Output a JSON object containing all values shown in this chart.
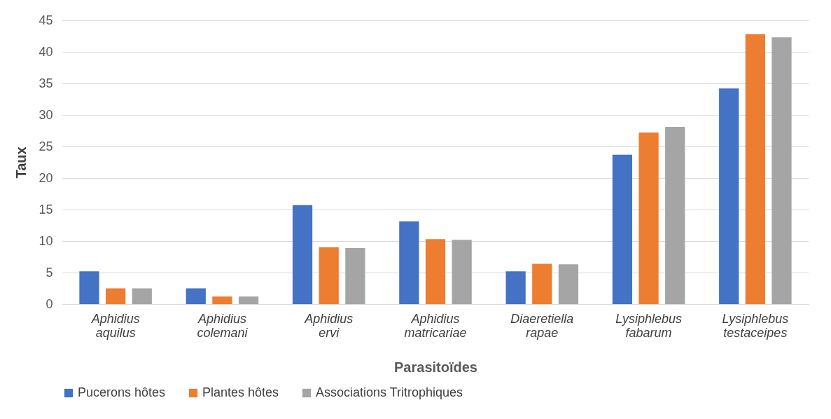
{
  "chart_data": {
    "type": "bar",
    "xlabel": "Parasitoïdes",
    "ylabel": "Taux",
    "categories": [
      "Aphidius aquilus",
      "Aphidius colemani",
      "Aphidius ervi",
      "Aphidius matricariae",
      "Diaeretiella rapae",
      "Lysiphlebus fabarum",
      "Lysiphlebus testaceipes"
    ],
    "series": [
      {
        "name": "Pucerons hôtes",
        "color": "#4472c4",
        "values": [
          5.2,
          2.5,
          15.7,
          13.1,
          5.2,
          23.7,
          34.2
        ]
      },
      {
        "name": "Plantes hôtes",
        "color": "#ed7d31",
        "values": [
          2.5,
          1.2,
          9.0,
          10.3,
          6.4,
          27.2,
          42.8
        ]
      },
      {
        "name": "Associations Tritrophiques",
        "color": "#a5a5a5",
        "values": [
          2.5,
          1.2,
          8.9,
          10.2,
          6.3,
          28.1,
          42.3
        ]
      }
    ],
    "ylim": [
      0,
      45
    ],
    "yticks": [
      0,
      5,
      10,
      15,
      20,
      25,
      30,
      35,
      40,
      45
    ],
    "grid": "y",
    "legend": "bottom"
  }
}
